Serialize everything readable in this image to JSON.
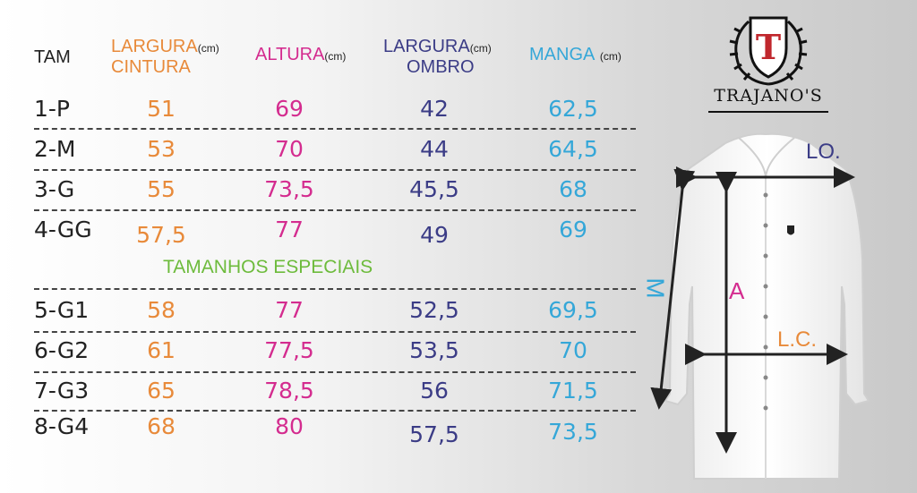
{
  "header": {
    "tam": "TAM",
    "largura_cintura": [
      "LARGURA",
      "CINTURA"
    ],
    "altura": "ALTURA",
    "largura_ombro": [
      "LARGURA",
      "OMBRO"
    ],
    "manga": "MANGA",
    "unit": "(cm)"
  },
  "rows_regular": [
    {
      "tam": "1-P",
      "lc": "51",
      "a": "69",
      "lo": "42",
      "m": "62,5"
    },
    {
      "tam": "2-M",
      "lc": "53",
      "a": "70",
      "lo": "44",
      "m": "64,5"
    },
    {
      "tam": "3-G",
      "lc": "55",
      "a": "73,5",
      "lo": "45,5",
      "m": "68"
    },
    {
      "tam": "4-GG",
      "lc": "57,5",
      "a": "77",
      "lo": "49",
      "m": "69"
    }
  ],
  "special_title": "TAMANHOS ESPECIAIS",
  "rows_special": [
    {
      "tam": "5-G1",
      "lc": "58",
      "a": "77",
      "lo": "52,5",
      "m": "69,5"
    },
    {
      "tam": "6-G2",
      "lc": "61",
      "a": "77,5",
      "lo": "53,5",
      "m": "70"
    },
    {
      "tam": "7-G3",
      "lc": "65",
      "a": "78,5",
      "lo": "56",
      "m": "71,5"
    },
    {
      "tam": "8-G4",
      "lc": "68",
      "a": "80",
      "lo": "57,5",
      "m": "73,5"
    }
  ],
  "logo": {
    "letter": "T",
    "brand": "TRAJANO'S"
  },
  "diagram_labels": {
    "lo": "LO.",
    "a": "A",
    "lc": "L.C.",
    "m": "M"
  },
  "colors": {
    "largura_cintura": "#e88a3a",
    "altura": "#d42c8f",
    "largura_ombro": "#3b3c86",
    "manga": "#35a7d8",
    "special": "#6dbb3c"
  }
}
